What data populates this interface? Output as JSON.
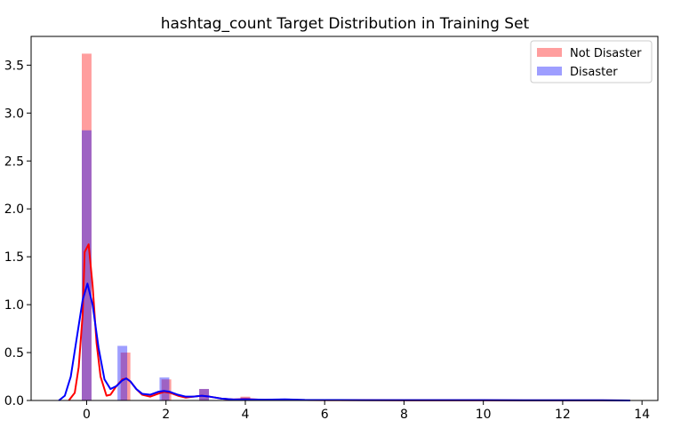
{
  "chart_data": {
    "type": "bar",
    "title": "hashtag_count Target Distribution in Training Set",
    "xlabel": "",
    "ylabel": "",
    "xlim": [
      -1.4,
      14.4
    ],
    "ylim": [
      0,
      3.8
    ],
    "xticks": [
      0,
      2,
      4,
      6,
      8,
      10,
      12,
      14
    ],
    "yticks": [
      0.0,
      0.5,
      1.0,
      1.5,
      2.0,
      2.5,
      3.0,
      3.5
    ],
    "xtick_labels": [
      "0",
      "2",
      "4",
      "6",
      "8",
      "10",
      "12",
      "14"
    ],
    "ytick_labels": [
      "0.0",
      "0.5",
      "1.0",
      "1.5",
      "2.0",
      "2.5",
      "3.0",
      "3.5"
    ],
    "legend_position": "top-right",
    "grid": false,
    "series": [
      {
        "name": "Not Disaster",
        "kind": "histogram",
        "color": "#ff0000",
        "opacity": 0.38,
        "bin_width": 0.245,
        "bins": [
          {
            "x": 0.0,
            "y": 3.62
          },
          {
            "x": 0.98,
            "y": 0.5
          },
          {
            "x": 2.01,
            "y": 0.22
          },
          {
            "x": 2.96,
            "y": 0.12
          },
          {
            "x": 4.0,
            "y": 0.04
          },
          {
            "x": 5.0,
            "y": 0.015
          },
          {
            "x": 6.0,
            "y": 0.01
          },
          {
            "x": 7.0,
            "y": 0.006
          },
          {
            "x": 8.0,
            "y": 0.005
          },
          {
            "x": 10.0,
            "y": 0.004
          },
          {
            "x": 11.0,
            "y": 0.003
          },
          {
            "x": 13.0,
            "y": 0.002
          }
        ]
      },
      {
        "name": "Disaster",
        "kind": "histogram",
        "color": "#0000ff",
        "opacity": 0.38,
        "bin_width": 0.245,
        "bins": [
          {
            "x": 0.0,
            "y": 2.82
          },
          {
            "x": 0.9,
            "y": 0.57
          },
          {
            "x": 1.96,
            "y": 0.24
          },
          {
            "x": 2.96,
            "y": 0.12
          },
          {
            "x": 4.0,
            "y": 0.03
          },
          {
            "x": 5.0,
            "y": 0.02
          },
          {
            "x": 6.0,
            "y": 0.01
          },
          {
            "x": 7.0,
            "y": 0.008
          },
          {
            "x": 8.0,
            "y": 0.008
          },
          {
            "x": 10.0,
            "y": 0.01
          },
          {
            "x": 13.0,
            "y": 0.003
          }
        ]
      },
      {
        "name": "Not Disaster",
        "kind": "kde",
        "color": "#ff0000",
        "points": [
          [
            -0.45,
            0.0
          ],
          [
            -0.3,
            0.08
          ],
          [
            -0.2,
            0.35
          ],
          [
            -0.1,
            0.9
          ],
          [
            -0.05,
            1.55
          ],
          [
            0.05,
            1.63
          ],
          [
            0.15,
            1.2
          ],
          [
            0.25,
            0.6
          ],
          [
            0.35,
            0.25
          ],
          [
            0.5,
            0.05
          ],
          [
            0.6,
            0.06
          ],
          [
            0.75,
            0.15
          ],
          [
            0.9,
            0.22
          ],
          [
            1.0,
            0.23
          ],
          [
            1.1,
            0.2
          ],
          [
            1.25,
            0.12
          ],
          [
            1.4,
            0.06
          ],
          [
            1.6,
            0.04
          ],
          [
            1.8,
            0.07
          ],
          [
            1.95,
            0.09
          ],
          [
            2.1,
            0.08
          ],
          [
            2.3,
            0.05
          ],
          [
            2.5,
            0.03
          ],
          [
            2.7,
            0.04
          ],
          [
            2.9,
            0.05
          ],
          [
            3.1,
            0.04
          ],
          [
            3.4,
            0.02
          ],
          [
            3.7,
            0.01
          ],
          [
            4.0,
            0.015
          ],
          [
            4.4,
            0.008
          ],
          [
            5.0,
            0.006
          ],
          [
            6.0,
            0.004
          ],
          [
            7.0,
            0.003
          ],
          [
            8.0,
            0.002
          ],
          [
            9.0,
            0.002
          ],
          [
            10.0,
            0.002
          ],
          [
            11.0,
            0.001
          ],
          [
            12.0,
            0.001
          ],
          [
            13.0,
            0.001
          ],
          [
            13.7,
            0.0
          ]
        ]
      },
      {
        "name": "Disaster",
        "kind": "kde",
        "color": "#0000ff",
        "points": [
          [
            -0.7,
            0.0
          ],
          [
            -0.55,
            0.05
          ],
          [
            -0.4,
            0.25
          ],
          [
            -0.25,
            0.65
          ],
          [
            -0.1,
            1.05
          ],
          [
            0.02,
            1.22
          ],
          [
            0.15,
            1.0
          ],
          [
            0.3,
            0.55
          ],
          [
            0.45,
            0.22
          ],
          [
            0.6,
            0.12
          ],
          [
            0.75,
            0.15
          ],
          [
            0.9,
            0.21
          ],
          [
            1.0,
            0.23
          ],
          [
            1.1,
            0.2
          ],
          [
            1.25,
            0.12
          ],
          [
            1.4,
            0.07
          ],
          [
            1.6,
            0.06
          ],
          [
            1.8,
            0.09
          ],
          [
            1.95,
            0.1
          ],
          [
            2.1,
            0.09
          ],
          [
            2.3,
            0.06
          ],
          [
            2.5,
            0.04
          ],
          [
            2.7,
            0.04
          ],
          [
            2.9,
            0.05
          ],
          [
            3.1,
            0.04
          ],
          [
            3.4,
            0.02
          ],
          [
            3.7,
            0.01
          ],
          [
            4.0,
            0.012
          ],
          [
            4.5,
            0.008
          ],
          [
            5.0,
            0.012
          ],
          [
            5.5,
            0.006
          ],
          [
            6.0,
            0.005
          ],
          [
            7.0,
            0.004
          ],
          [
            8.0,
            0.004
          ],
          [
            9.0,
            0.003
          ],
          [
            10.0,
            0.004
          ],
          [
            11.0,
            0.002
          ],
          [
            12.0,
            0.002
          ],
          [
            13.0,
            0.002
          ],
          [
            13.7,
            0.0
          ]
        ]
      }
    ]
  }
}
